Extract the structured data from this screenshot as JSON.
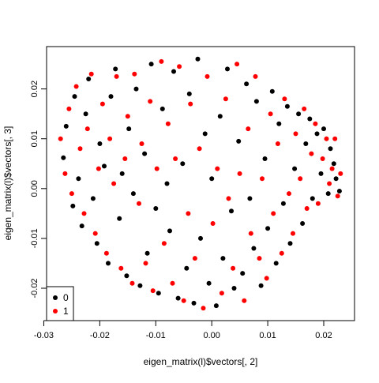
{
  "chart_data": {
    "type": "scatter",
    "title": "",
    "xlabel": "eigen_matrix(l)$vectors[, 2]",
    "ylabel": "eigen_matrix(l)$vectors[, 3]",
    "xlim": [
      -0.0295,
      0.0255
    ],
    "ylim": [
      -0.0265,
      0.0285
    ],
    "x_ticks": [
      -0.03,
      -0.02,
      -0.01,
      0.0,
      0.01,
      0.02
    ],
    "x_tick_labels": [
      "-0.03",
      "-0.02",
      "-0.01",
      "0.00",
      "0.01",
      "0.02"
    ],
    "y_ticks": [
      -0.02,
      -0.01,
      0.0,
      0.01,
      0.02
    ],
    "y_tick_labels": [
      "-0.02",
      "-0.01",
      "0.00",
      "0.01",
      "0.02"
    ],
    "grid": false,
    "legend": {
      "placement": "bottom-left",
      "entries": [
        {
          "label": "0",
          "color": "#000000"
        },
        {
          "label": "1",
          "color": "#ff0000"
        }
      ]
    },
    "series": [
      {
        "name": "0",
        "color": "#000000",
        "points": [
          [
            -0.0265,
            0.0062
          ],
          [
            -0.026,
            0.0125
          ],
          [
            -0.0248,
            -0.0035
          ],
          [
            -0.0245,
            0.0185
          ],
          [
            -0.0238,
            0.002
          ],
          [
            -0.0232,
            -0.0075
          ],
          [
            -0.0225,
            0.015
          ],
          [
            -0.022,
            0.022
          ],
          [
            -0.0212,
            -0.002
          ],
          [
            -0.0205,
            -0.011
          ],
          [
            -0.02,
            0.009
          ],
          [
            -0.0192,
            0.0045
          ],
          [
            -0.0185,
            -0.015
          ],
          [
            -0.018,
            0.0185
          ],
          [
            -0.0172,
            0.024
          ],
          [
            -0.0165,
            -0.006
          ],
          [
            -0.016,
            0.003
          ],
          [
            -0.0152,
            -0.0175
          ],
          [
            -0.0148,
            0.012
          ],
          [
            -0.014,
            -0.001
          ],
          [
            -0.0135,
            0.02
          ],
          [
            -0.0128,
            -0.0195
          ],
          [
            -0.012,
            0.007
          ],
          [
            -0.0115,
            -0.013
          ],
          [
            -0.0108,
            0.025
          ],
          [
            -0.01,
            -0.004
          ],
          [
            -0.0095,
            -0.021
          ],
          [
            -0.0088,
            0.016
          ],
          [
            -0.008,
            0.001
          ],
          [
            -0.0075,
            -0.0085
          ],
          [
            -0.0068,
            0.0235
          ],
          [
            -0.006,
            -0.022
          ],
          [
            -0.0052,
            0.005
          ],
          [
            -0.0045,
            -0.016
          ],
          [
            -0.004,
            0.019
          ],
          [
            -0.0032,
            -0.023
          ],
          [
            -0.0025,
            0.026
          ],
          [
            -0.002,
            -0.01
          ],
          [
            -0.0012,
            0.011
          ],
          [
            -0.0005,
            -0.019
          ],
          [
            0.0,
            0.002
          ],
          [
            0.0008,
            -0.0235
          ],
          [
            0.0015,
            0.0145
          ],
          [
            0.002,
            -0.014
          ],
          [
            0.0028,
            0.024
          ],
          [
            0.0035,
            -0.0045
          ],
          [
            0.004,
            -0.02
          ],
          [
            0.0048,
            0.0095
          ],
          [
            0.0055,
            -0.017
          ],
          [
            0.0062,
            0.021
          ],
          [
            0.0068,
            -0.002
          ],
          [
            0.0075,
            -0.012
          ],
          [
            0.008,
            0.0175
          ],
          [
            0.0088,
            -0.0195
          ],
          [
            0.0095,
            0.006
          ],
          [
            0.01,
            -0.008
          ],
          [
            0.0108,
            0.0195
          ],
          [
            0.0115,
            -0.015
          ],
          [
            0.012,
            0.013
          ],
          [
            0.0128,
            -0.003
          ],
          [
            0.0135,
            0.0165
          ],
          [
            0.014,
            -0.011
          ],
          [
            0.0148,
            0.004
          ],
          [
            0.0155,
            0.015
          ],
          [
            0.0162,
            -0.007
          ],
          [
            0.0168,
            0.009
          ],
          [
            0.0175,
            0.014
          ],
          [
            0.018,
            -0.002
          ],
          [
            0.0188,
            0.011
          ],
          [
            0.0195,
            0.003
          ],
          [
            0.02,
            0.012
          ],
          [
            0.0208,
            -0.001
          ],
          [
            0.0212,
            0.008
          ],
          [
            0.0218,
            0.005
          ],
          [
            0.0222,
            0.002
          ],
          [
            0.0228,
            -0.0005
          ]
        ]
      },
      {
        "name": "1",
        "color": "#ff0000",
        "points": [
          [
            -0.027,
            0.01
          ],
          [
            -0.0262,
            0.003
          ],
          [
            -0.0255,
            0.016
          ],
          [
            -0.025,
            -0.001
          ],
          [
            -0.0242,
            0.0205
          ],
          [
            -0.0235,
            0.008
          ],
          [
            -0.0228,
            -0.005
          ],
          [
            -0.0222,
            0.012
          ],
          [
            -0.0215,
            0.023
          ],
          [
            -0.0208,
            -0.009
          ],
          [
            -0.0202,
            0.004
          ],
          [
            -0.0195,
            0.017
          ],
          [
            -0.0188,
            -0.013
          ],
          [
            -0.0182,
            0.01
          ],
          [
            -0.0175,
            0.001
          ],
          [
            -0.017,
            0.0225
          ],
          [
            -0.0162,
            -0.016
          ],
          [
            -0.0155,
            0.006
          ],
          [
            -0.015,
            0.0145
          ],
          [
            -0.0142,
            -0.019
          ],
          [
            -0.0138,
            0.023
          ],
          [
            -0.013,
            -0.003
          ],
          [
            -0.0125,
            0.009
          ],
          [
            -0.0118,
            -0.015
          ],
          [
            -0.011,
            0.0175
          ],
          [
            -0.0105,
            -0.0205
          ],
          [
            -0.0098,
            0.004
          ],
          [
            -0.009,
            0.0255
          ],
          [
            -0.0085,
            -0.011
          ],
          [
            -0.0078,
            0.013
          ],
          [
            -0.007,
            -0.019
          ],
          [
            -0.0065,
            0.006
          ],
          [
            -0.0058,
            0.0245
          ],
          [
            -0.005,
            -0.0225
          ],
          [
            -0.0042,
            -0.005
          ],
          [
            -0.0038,
            0.017
          ],
          [
            -0.003,
            -0.014
          ],
          [
            -0.0022,
            0.008
          ],
          [
            -0.0015,
            -0.024
          ],
          [
            -0.0008,
            0.0225
          ],
          [
            0.0002,
            -0.007
          ],
          [
            0.001,
            0.004
          ],
          [
            0.0018,
            -0.021
          ],
          [
            0.0025,
            0.018
          ],
          [
            0.003,
            -0.002
          ],
          [
            0.0038,
            -0.016
          ],
          [
            0.0045,
            0.025
          ],
          [
            0.005,
            0.003
          ],
          [
            0.0058,
            -0.0225
          ],
          [
            0.0065,
            0.012
          ],
          [
            0.007,
            -0.009
          ],
          [
            0.0078,
            0.0225
          ],
          [
            0.0085,
            -0.014
          ],
          [
            0.009,
            0.002
          ],
          [
            0.0098,
            -0.018
          ],
          [
            0.0105,
            0.015
          ],
          [
            0.011,
            -0.005
          ],
          [
            0.0118,
            0.009
          ],
          [
            0.0125,
            -0.013
          ],
          [
            0.013,
            0.018
          ],
          [
            0.0138,
            -0.001
          ],
          [
            0.0145,
            -0.009
          ],
          [
            0.015,
            0.011
          ],
          [
            0.0158,
            0.002
          ],
          [
            0.0165,
            0.016
          ],
          [
            0.017,
            -0.004
          ],
          [
            0.0178,
            0.007
          ],
          [
            0.0185,
            0.013
          ],
          [
            0.019,
            -0.003
          ],
          [
            0.0198,
            0.006
          ],
          [
            0.0205,
            0.01
          ],
          [
            0.021,
            0.001
          ],
          [
            0.0215,
            0.004
          ],
          [
            0.022,
            0.01
          ],
          [
            0.0225,
            -0.0015
          ],
          [
            0.023,
            0.003
          ]
        ]
      }
    ]
  }
}
